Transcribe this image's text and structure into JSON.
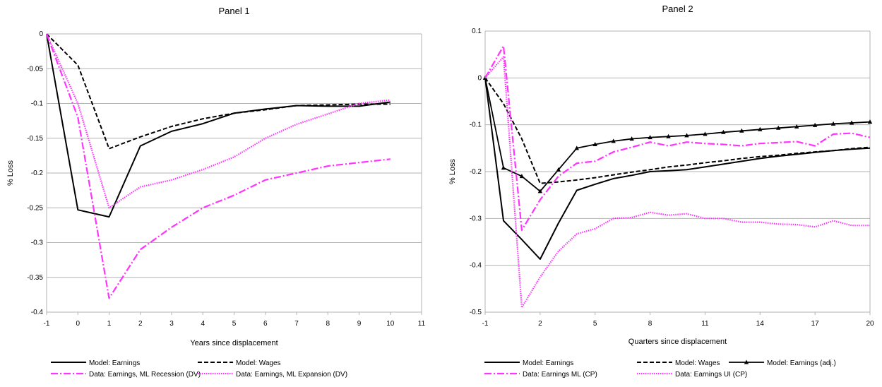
{
  "chart_data": [
    {
      "type": "line",
      "title": "Panel 1",
      "xlabel": "Years since displacement",
      "ylabel": "% Loss",
      "xlim": [
        -1,
        11
      ],
      "ylim": [
        -0.4,
        0
      ],
      "x_ticks": [
        "-1",
        "0",
        "1",
        "2",
        "3",
        "4",
        "5",
        "6",
        "7",
        "8",
        "9",
        "10",
        "11"
      ],
      "y_ticks": [
        "0",
        "-0.05",
        "-0.1",
        "-0.15",
        "-0.2",
        "-0.25",
        "-0.3",
        "-0.35",
        "-0.4"
      ],
      "grid": "horizontal",
      "legend_position": "bottom",
      "series": [
        {
          "name": "Model: Earnings",
          "style": "solid",
          "color": "#000000",
          "x": [
            -1,
            0,
            1,
            2,
            3,
            4,
            5,
            6,
            7,
            8,
            9,
            10
          ],
          "y": [
            0,
            -0.253,
            -0.263,
            -0.161,
            -0.14,
            -0.129,
            -0.114,
            -0.108,
            -0.103,
            -0.104,
            -0.104,
            -0.098
          ]
        },
        {
          "name": "Model: Wages",
          "style": "dash",
          "color": "#000000",
          "x": [
            -1,
            0,
            1,
            2,
            3,
            4,
            5,
            6,
            7,
            8,
            9,
            10
          ],
          "y": [
            0,
            -0.045,
            -0.165,
            -0.148,
            -0.133,
            -0.122,
            -0.114,
            -0.109,
            -0.103,
            -0.102,
            -0.101,
            -0.101
          ]
        },
        {
          "name": "Data: Earnings, ML  Recession (DV)",
          "style": "dashdot",
          "color": "#ff33ff",
          "x": [
            -1,
            0,
            1,
            2,
            3,
            4,
            5,
            6,
            7,
            8,
            9,
            10
          ],
          "y": [
            0,
            -0.12,
            -0.38,
            -0.31,
            -0.278,
            -0.25,
            -0.232,
            -0.21,
            -0.2,
            -0.19,
            -0.185,
            -0.18
          ]
        },
        {
          "name": "Data: Earnings, ML  Expansion (DV)",
          "style": "dot",
          "color": "#ff33ff",
          "x": [
            -1,
            0,
            1,
            2,
            3,
            4,
            5,
            6,
            7,
            8,
            9,
            10
          ],
          "y": [
            0,
            -0.1,
            -0.25,
            -0.22,
            -0.21,
            -0.195,
            -0.177,
            -0.15,
            -0.13,
            -0.115,
            -0.1,
            -0.095
          ]
        }
      ]
    },
    {
      "type": "line",
      "title": "Panel 2",
      "xlabel": "Quarters since displacement",
      "ylabel": "% Loss",
      "xlim": [
        -1,
        20
      ],
      "ylim": [
        -0.5,
        0.1
      ],
      "x_ticks": [
        "-1",
        "2",
        "5",
        "8",
        "11",
        "14",
        "17",
        "20"
      ],
      "x_tick_values": [
        -1,
        2,
        5,
        8,
        11,
        14,
        17,
        20
      ],
      "y_ticks": [
        "0.1",
        "0",
        "-0.1",
        "-0.2",
        "-0.3",
        "-0.4",
        "-0.5"
      ],
      "grid": "horizontal",
      "legend_position": "bottom",
      "series": [
        {
          "name": "Model: Earnings",
          "style": "solid",
          "color": "#000000",
          "x": [
            -1,
            0,
            1,
            2,
            3,
            4,
            5,
            6,
            7,
            8,
            9,
            10,
            11,
            12,
            13,
            14,
            15,
            16,
            17,
            18,
            19,
            20
          ],
          "y": [
            0,
            -0.305,
            -0.345,
            -0.387,
            -0.31,
            -0.24,
            -0.227,
            -0.215,
            -0.208,
            -0.2,
            -0.198,
            -0.196,
            -0.19,
            -0.184,
            -0.178,
            -0.172,
            -0.167,
            -0.163,
            -0.159,
            -0.155,
            -0.152,
            -0.15
          ]
        },
        {
          "name": "Model: Wages",
          "style": "dash",
          "color": "#000000",
          "x": [
            -1,
            0,
            1,
            2,
            3,
            4,
            5,
            6,
            7,
            8,
            9,
            10,
            11,
            12,
            13,
            14,
            15,
            16,
            17,
            18,
            19,
            20
          ],
          "y": [
            0,
            -0.055,
            -0.13,
            -0.225,
            -0.222,
            -0.218,
            -0.213,
            -0.207,
            -0.201,
            -0.196,
            -0.19,
            -0.186,
            -0.181,
            -0.177,
            -0.172,
            -0.168,
            -0.165,
            -0.161,
            -0.158,
            -0.155,
            -0.151,
            -0.148
          ]
        },
        {
          "name": "Model: Earnings (adj.)",
          "style": "solid-triangle",
          "color": "#000000",
          "x": [
            -1,
            0,
            1,
            2,
            3,
            4,
            5,
            6,
            7,
            8,
            9,
            10,
            11,
            12,
            13,
            14,
            15,
            16,
            17,
            18,
            19,
            20
          ],
          "y": [
            0,
            -0.192,
            -0.21,
            -0.242,
            -0.196,
            -0.15,
            -0.142,
            -0.135,
            -0.13,
            -0.127,
            -0.125,
            -0.123,
            -0.12,
            -0.116,
            -0.113,
            -0.11,
            -0.107,
            -0.104,
            -0.101,
            -0.098,
            -0.096,
            -0.094
          ]
        },
        {
          "name": "Data: Earnings ML (CP)",
          "style": "dashdot",
          "color": "#ff33ff",
          "x": [
            -1,
            0,
            1,
            2,
            3,
            4,
            5,
            6,
            7,
            8,
            9,
            10,
            11,
            12,
            13,
            14,
            15,
            16,
            17,
            18,
            19,
            20
          ],
          "y": [
            0,
            0.068,
            -0.325,
            -0.26,
            -0.21,
            -0.182,
            -0.178,
            -0.158,
            -0.148,
            -0.137,
            -0.145,
            -0.137,
            -0.14,
            -0.142,
            -0.145,
            -0.14,
            -0.138,
            -0.136,
            -0.145,
            -0.12,
            -0.118,
            -0.127
          ]
        },
        {
          "name": "Data: Earnings UI (CP)",
          "style": "dot",
          "color": "#ff33ff",
          "x": [
            -1,
            0,
            1,
            2,
            3,
            4,
            5,
            6,
            7,
            8,
            9,
            10,
            11,
            12,
            13,
            14,
            15,
            16,
            17,
            18,
            19,
            20
          ],
          "y": [
            0,
            0.045,
            -0.49,
            -0.425,
            -0.37,
            -0.333,
            -0.322,
            -0.3,
            -0.298,
            -0.287,
            -0.293,
            -0.29,
            -0.3,
            -0.3,
            -0.308,
            -0.308,
            -0.312,
            -0.313,
            -0.318,
            -0.305,
            -0.315,
            -0.315
          ]
        }
      ]
    }
  ]
}
